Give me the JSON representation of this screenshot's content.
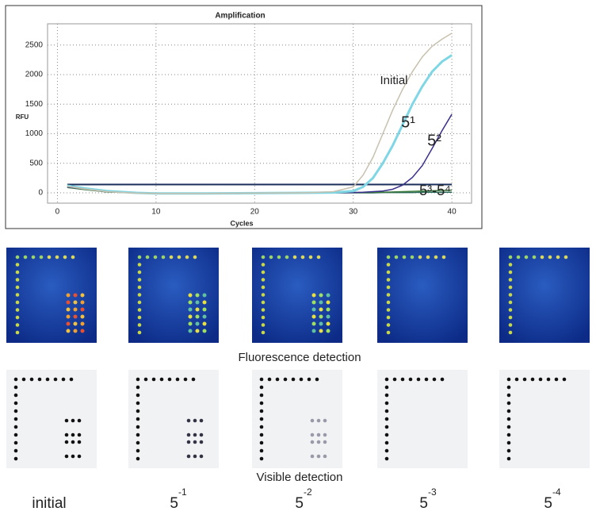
{
  "chart_data": {
    "type": "line",
    "title": "Amplification",
    "x_label": "Cycles",
    "y_label": "RFU",
    "x": [
      1,
      3,
      5,
      8,
      10,
      15,
      20,
      25,
      28,
      30,
      31,
      32,
      33,
      34,
      35,
      36,
      37,
      38,
      39,
      40
    ],
    "series": [
      {
        "name": "Initial",
        "color": "#c9c0ae",
        "values": [
          110,
          60,
          20,
          -5,
          -10,
          -10,
          -5,
          0,
          20,
          100,
          300,
          600,
          1000,
          1400,
          1750,
          2050,
          2300,
          2480,
          2600,
          2700
        ]
      },
      {
        "name": "5¹",
        "color": "#7fd6e4",
        "values": [
          120,
          70,
          30,
          0,
          -10,
          -10,
          -5,
          0,
          5,
          30,
          100,
          250,
          500,
          800,
          1150,
          1500,
          1800,
          2050,
          2220,
          2330
        ]
      },
      {
        "name": "5²",
        "color": "#3a2f8c",
        "values": [
          100,
          60,
          20,
          0,
          -10,
          -10,
          -5,
          0,
          0,
          5,
          10,
          20,
          30,
          60,
          130,
          260,
          460,
          750,
          1050,
          1330
        ]
      },
      {
        "color": "#3c7a3c",
        "values": [
          90,
          50,
          15,
          0,
          -10,
          -10,
          -5,
          0,
          0,
          5,
          5,
          10,
          10,
          15,
          20,
          25,
          30,
          35,
          40,
          45
        ]
      },
      {
        "color": "#2a6a5a",
        "values": [
          100,
          55,
          15,
          0,
          -10,
          -10,
          -5,
          0,
          0,
          0,
          0,
          0,
          5,
          5,
          5,
          5,
          10,
          10,
          10,
          10
        ]
      }
    ],
    "annotations": [
      "5³-5⁴"
    ],
    "threshold": 140,
    "threshold_color": "#1a2e5a",
    "xlim": [
      -1,
      42
    ],
    "ylim": [
      -175,
      2860
    ],
    "xticks": [
      0,
      10,
      20,
      30,
      40
    ],
    "yticks": [
      0,
      500,
      1000,
      1500,
      2000,
      2500
    ],
    "grid": true
  },
  "fluorescence_label": "Fluorescence detection",
  "visible_label": "Visible detection",
  "dilutions": [
    {
      "text": "initial"
    },
    {
      "base": "5",
      "exponent": "-1"
    },
    {
      "base": "5",
      "exponent": "-2"
    },
    {
      "base": "5",
      "exponent": "-3"
    },
    {
      "base": "5",
      "exponent": "-4"
    }
  ]
}
